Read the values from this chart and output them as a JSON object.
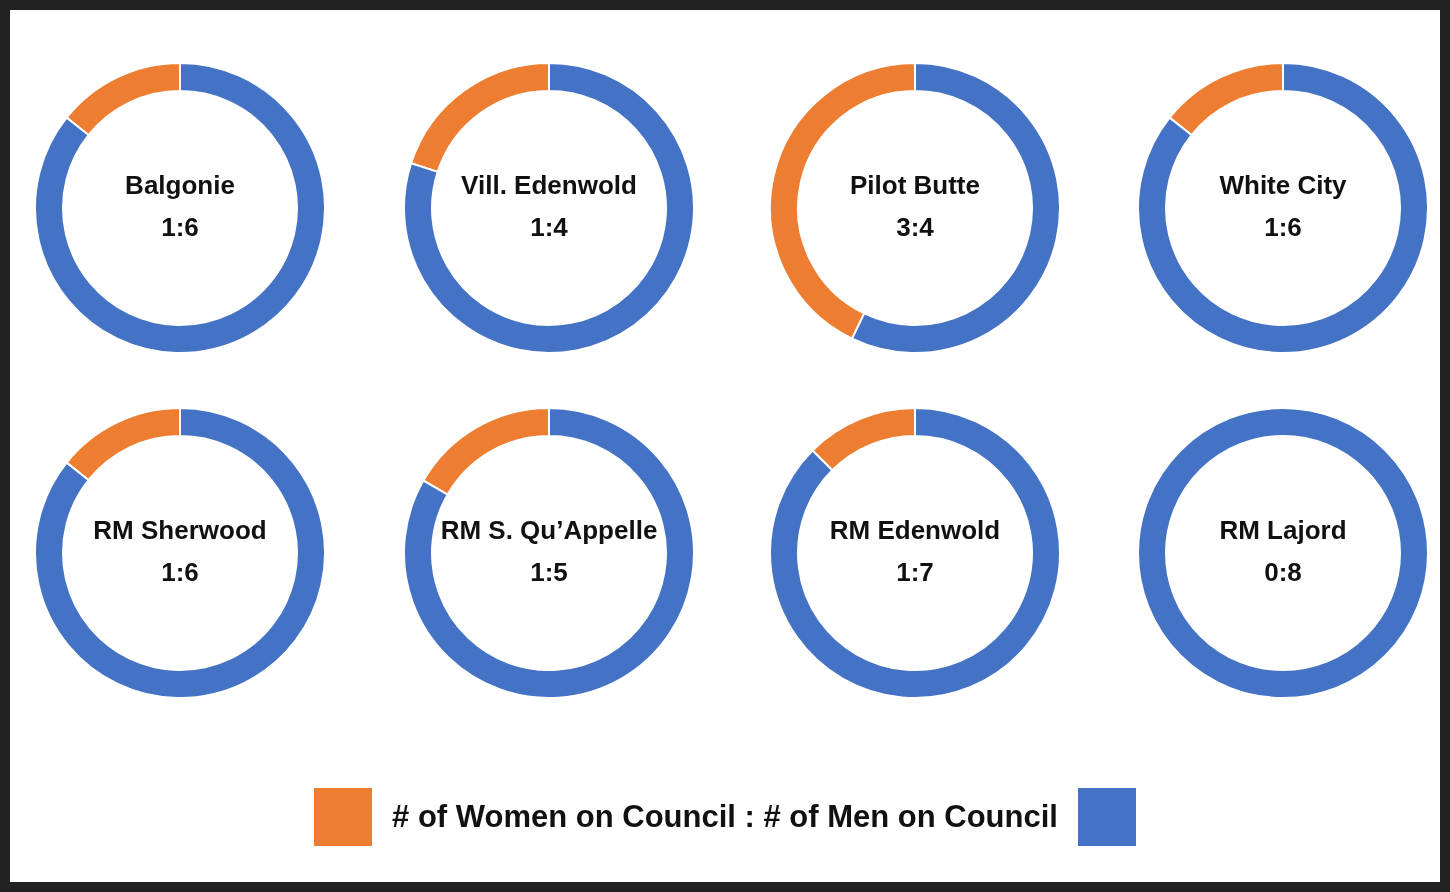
{
  "chart_data": [
    {
      "type": "donut",
      "title": "Balgonie",
      "annotations": [
        "1:6"
      ],
      "values": [
        14.29,
        85.71
      ],
      "colors": [
        "#ed7d31",
        "#4472c4"
      ]
    },
    {
      "type": "donut",
      "title": "Vill. Edenwold",
      "annotations": [
        "1:4"
      ],
      "values": [
        20,
        80
      ],
      "colors": [
        "#ed7d31",
        "#4472c4"
      ]
    },
    {
      "type": "donut",
      "title": "Pilot Butte",
      "annotations": [
        "3:4"
      ],
      "values": [
        42.86,
        57.14
      ],
      "colors": [
        "#ed7d31",
        "#4472c4"
      ]
    },
    {
      "type": "donut",
      "title": "White City",
      "annotations": [
        "1:6"
      ],
      "values": [
        14.29,
        85.71
      ],
      "colors": [
        "#ed7d31",
        "#4472c4"
      ]
    },
    {
      "type": "donut",
      "title": "RM Sherwood",
      "annotations": [
        "1:6"
      ],
      "values": [
        14.29,
        85.71
      ],
      "colors": [
        "#ed7d31",
        "#4472c4"
      ]
    },
    {
      "type": "donut",
      "title": "RM S. Qu’Appelle",
      "annotations": [
        "1:5"
      ],
      "values": [
        16.67,
        83.33
      ],
      "colors": [
        "#ed7d31",
        "#4472c4"
      ]
    },
    {
      "type": "donut",
      "title": "RM Edenwold",
      "annotations": [
        "1:7"
      ],
      "values": [
        12.5,
        87.5
      ],
      "colors": [
        "#ed7d31",
        "#4472c4"
      ]
    },
    {
      "type": "donut",
      "title": "RM Lajord",
      "annotations": [
        "0:8"
      ],
      "values": [
        0,
        100
      ],
      "colors": [
        "#ed7d31",
        "#4472c4"
      ]
    },
    {
      "type": "other",
      "annotations": [
        "# of Women on Council : # of Men on Council"
      ]
    }
  ]
}
